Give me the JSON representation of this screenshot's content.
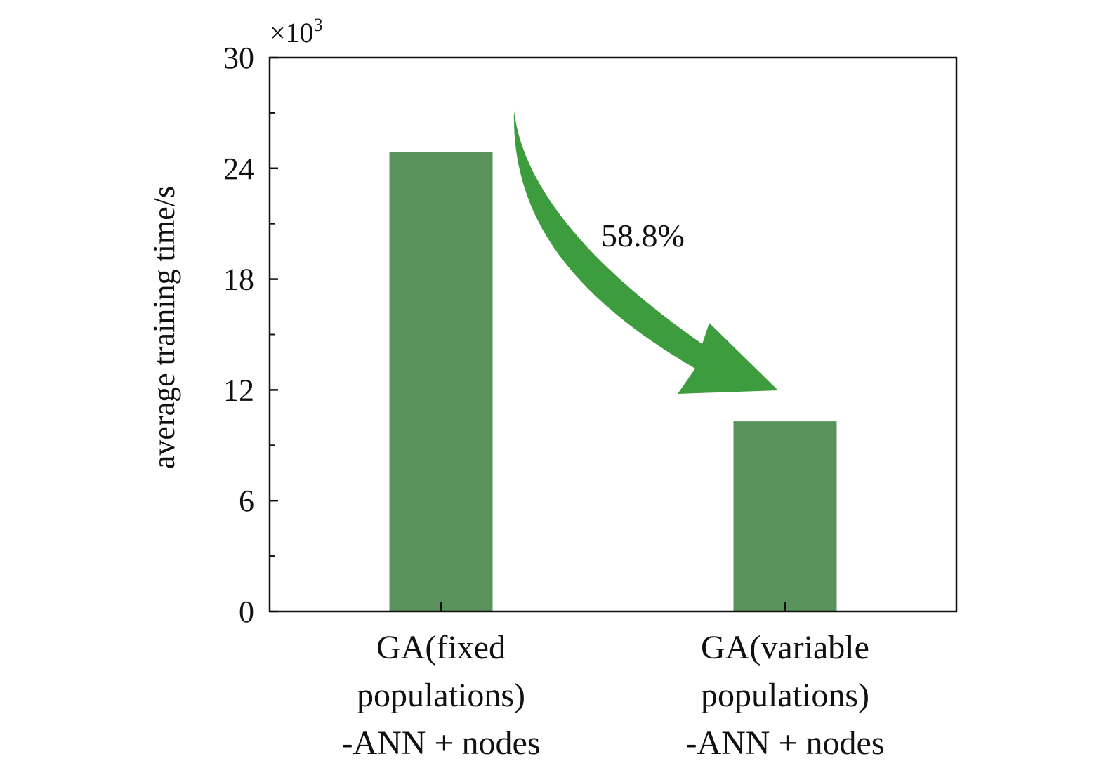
{
  "chart_data": {
    "type": "bar",
    "categories": [
      [
        "GA(fixed",
        "populations)",
        "-ANN + nodes"
      ],
      [
        "GA(variable",
        "populations)",
        "-ANN + nodes"
      ]
    ],
    "values": [
      24.9,
      10.3
    ],
    "ylabel": "average training time/s",
    "ylim": [
      0,
      30
    ],
    "yticks": [
      0,
      6,
      12,
      18,
      24,
      30
    ],
    "y_multiplier": {
      "base": "×10",
      "exponent": "3"
    },
    "annotation": {
      "text": "58.8%",
      "from_category": 0,
      "to_category": 1
    },
    "grid": false,
    "legend": "none",
    "colors": {
      "bar": "#59935b",
      "arrow": "#3d9c3d",
      "axis": "#111111"
    }
  }
}
